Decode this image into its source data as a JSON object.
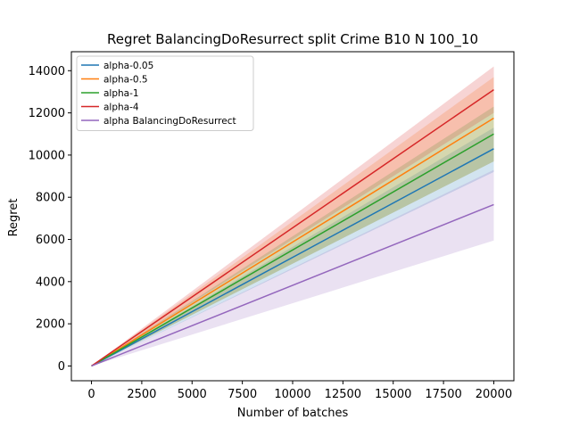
{
  "chart_data": {
    "type": "line",
    "title": "Regret BalancingDoResurrect split Crime B10 N 100_10",
    "xlabel": "Number of batches",
    "ylabel": "Regret",
    "xlim": [
      -1000,
      21000
    ],
    "ylim": [
      -700,
      14900
    ],
    "xticks": [
      0,
      2500,
      5000,
      7500,
      10000,
      12500,
      15000,
      17500,
      20000
    ],
    "yticks": [
      0,
      2000,
      4000,
      6000,
      8000,
      10000,
      12000,
      14000
    ],
    "grid": false,
    "legend_position": "top-left",
    "x": [
      0,
      20000
    ],
    "series": [
      {
        "name": "alpha-0.05",
        "color": "#1f77b4",
        "values": [
          0,
          10300
        ],
        "lower": [
          0,
          9200
        ],
        "upper": [
          0,
          11300
        ]
      },
      {
        "name": "alpha-0.5",
        "color": "#ff7f0e",
        "values": [
          0,
          11750
        ],
        "lower": [
          0,
          9700
        ],
        "upper": [
          0,
          13700
        ]
      },
      {
        "name": "alpha-1",
        "color": "#2ca02c",
        "values": [
          0,
          11000
        ],
        "lower": [
          0,
          9700
        ],
        "upper": [
          0,
          12300
        ]
      },
      {
        "name": "alpha-4",
        "color": "#d62728",
        "values": [
          0,
          13100
        ],
        "lower": [
          0,
          12000
        ],
        "upper": [
          0,
          14200
        ]
      },
      {
        "name": "alpha BalancingDoResurrect",
        "color": "#9467bd",
        "values": [
          0,
          7650
        ],
        "lower": [
          0,
          5950
        ],
        "upper": [
          0,
          9300
        ]
      }
    ]
  }
}
